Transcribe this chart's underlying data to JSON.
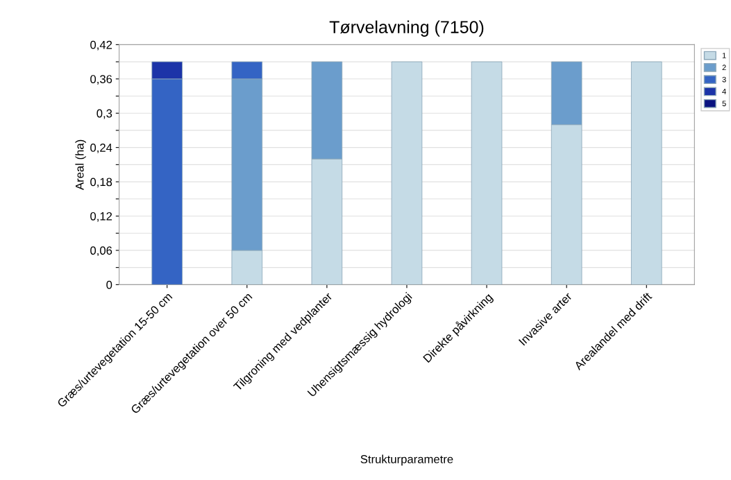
{
  "chart_data": {
    "type": "bar",
    "title": "Tørvelavning (7150)",
    "xlabel": "Strukturparametre",
    "ylabel": "Areal (ha)",
    "categories": [
      "Græs/urtevegetation 15-50 cm",
      "Græs/urtevegetation over 50 cm",
      "Tilgroning med vedplanter",
      "Uhensigtsmæssig hydrologi",
      "Direkte påvirkning",
      "Invasive arter",
      "Arealandel med drift"
    ],
    "stacked": true,
    "series": [
      {
        "name": "1",
        "color": "#c5dbe6",
        "values": [
          0,
          0.06,
          0.22,
          0.39,
          0.39,
          0.28,
          0.39
        ]
      },
      {
        "name": "2",
        "color": "#6b9dcc",
        "values": [
          0,
          0.3,
          0.17,
          0,
          0,
          0.11,
          0
        ]
      },
      {
        "name": "3",
        "color": "#3464c4",
        "values": [
          0.36,
          0.03,
          0,
          0,
          0,
          0,
          0
        ]
      },
      {
        "name": "4",
        "color": "#1c34a8",
        "values": [
          0.03,
          0,
          0,
          0,
          0,
          0,
          0
        ]
      },
      {
        "name": "5",
        "color": "#0a1280",
        "values": [
          0,
          0,
          0,
          0,
          0,
          0,
          0
        ]
      }
    ],
    "ylim": [
      0,
      0.42
    ],
    "yticks": [
      0,
      {
        "value": 0.03,
        "label": null
      },
      {
        "value": 0.06,
        "label": "0,06"
      },
      {
        "value": 0.09,
        "label": null
      },
      {
        "value": 0.12,
        "label": "0,12"
      },
      {
        "value": 0.15,
        "label": null
      },
      {
        "value": 0.18,
        "label": "0,18"
      },
      {
        "value": 0.21,
        "label": null
      },
      {
        "value": 0.24,
        "label": "0,24"
      },
      {
        "value": 0.27,
        "label": null
      },
      {
        "value": 0.3,
        "label": "0,3"
      },
      {
        "value": 0.33,
        "label": null
      },
      {
        "value": 0.36,
        "label": "0,36"
      },
      {
        "value": 0.39,
        "label": null
      },
      {
        "value": 0.42,
        "label": "0,42"
      }
    ],
    "grid": "y",
    "legend": "top right"
  }
}
